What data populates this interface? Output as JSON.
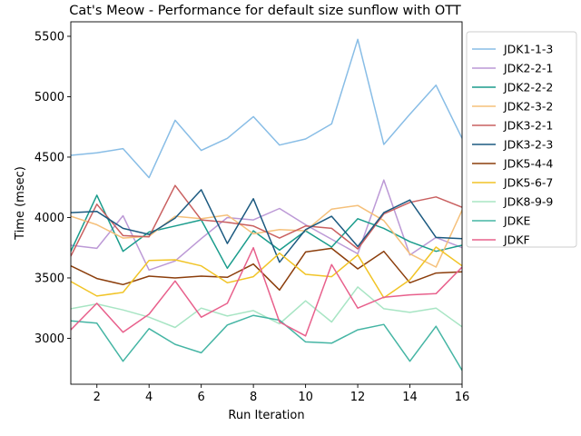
{
  "chart_data": {
    "type": "line",
    "title": "Cat's Meow - Performance for default size sunflow with OTT",
    "xlabel": "Run Iteration",
    "ylabel": "Time (msec)",
    "xlim": [
      1,
      16
    ],
    "ylim": [
      2620,
      5620
    ],
    "xticks": [
      2,
      4,
      6,
      8,
      10,
      12,
      14,
      16
    ],
    "yticks": [
      3000,
      3500,
      4000,
      4500,
      5000,
      5500
    ],
    "grid": false,
    "legend": "outside-right",
    "x": [
      1,
      2,
      3,
      4,
      5,
      6,
      7,
      8,
      9,
      10,
      11,
      12,
      13,
      14,
      15,
      16
    ],
    "series": [
      {
        "name": "JDK1-1-3",
        "color": "#88bde6",
        "values": [
          4515,
          4535,
          4570,
          4330,
          4805,
          4555,
          4655,
          4835,
          4600,
          4650,
          4775,
          5475,
          4605,
          4855,
          5095,
          4655
        ]
      },
      {
        "name": "JDK2-2-1",
        "color": "#bc99d6",
        "values": [
          3770,
          3745,
          4015,
          3565,
          3640,
          3825,
          4000,
          3980,
          4075,
          3940,
          3820,
          3700,
          4310,
          3690,
          3835,
          3750
        ]
      },
      {
        "name": "JDK2-2-2",
        "color": "#1a9c8c",
        "values": [
          3720,
          4185,
          3720,
          3880,
          3930,
          3980,
          3580,
          3890,
          3730,
          3890,
          3755,
          3990,
          3910,
          3800,
          3720,
          3770
        ]
      },
      {
        "name": "JDK2-3-2",
        "color": "#f5c07a",
        "values": [
          4010,
          3940,
          3830,
          3845,
          4010,
          3990,
          4020,
          3865,
          3900,
          3890,
          4070,
          4100,
          3975,
          3700,
          3590,
          4060
        ]
      },
      {
        "name": "JDK3-2-1",
        "color": "#c96060",
        "values": [
          3680,
          4110,
          3850,
          3840,
          4265,
          3980,
          3960,
          3930,
          3830,
          3930,
          3910,
          3740,
          4030,
          4125,
          4170,
          4085
        ]
      },
      {
        "name": "JDK3-2-3",
        "color": "#1c5a80",
        "values": [
          4040,
          4050,
          3910,
          3860,
          3995,
          4230,
          3785,
          4155,
          3630,
          3900,
          4010,
          3760,
          4040,
          4145,
          3835,
          3825
        ]
      },
      {
        "name": "JDK5-4-4",
        "color": "#8c3e0c",
        "values": [
          3600,
          3495,
          3445,
          3515,
          3500,
          3515,
          3505,
          3615,
          3400,
          3715,
          3745,
          3575,
          3720,
          3460,
          3540,
          3550
        ]
      },
      {
        "name": "JDK5-6-7",
        "color": "#f1c427",
        "values": [
          3470,
          3350,
          3380,
          3645,
          3650,
          3600,
          3460,
          3510,
          3705,
          3530,
          3510,
          3690,
          3335,
          3485,
          3755,
          3600
        ]
      },
      {
        "name": "JDK8-9-9",
        "color": "#a8e5c4",
        "values": [
          3245,
          3285,
          3235,
          3175,
          3090,
          3250,
          3185,
          3230,
          3120,
          3310,
          3135,
          3425,
          3245,
          3215,
          3250,
          3095
        ]
      },
      {
        "name": "JDKE",
        "color": "#45b5a4",
        "values": [
          3145,
          3125,
          2810,
          3080,
          2950,
          2880,
          3110,
          3190,
          3150,
          2970,
          2960,
          3070,
          3115,
          2810,
          3100,
          2735
        ]
      },
      {
        "name": "JDKF",
        "color": "#e8608c",
        "values": [
          3070,
          3290,
          3050,
          3200,
          3475,
          3175,
          3290,
          3750,
          3135,
          3020,
          3610,
          3250,
          3340,
          3360,
          3370,
          3590
        ]
      }
    ]
  }
}
